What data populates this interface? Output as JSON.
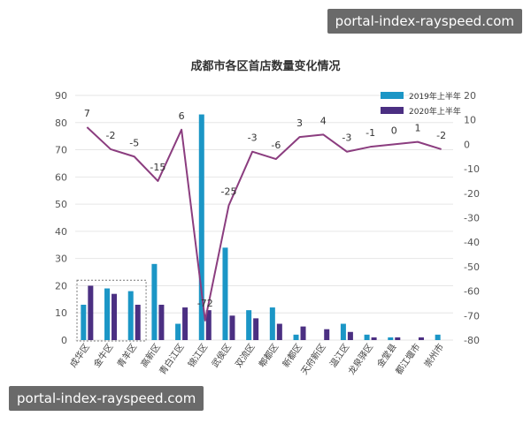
{
  "watermark_top": "portal-index-rayspeed.com",
  "watermark_bottom": "portal-index-rayspeed.com",
  "chart_data": {
    "type": "bar+line",
    "title": "成都市各区首店数量变化情况",
    "categories": [
      "成华区",
      "金牛区",
      "青羊区",
      "高新区",
      "青白江区",
      "锦江区",
      "武侯区",
      "双流区",
      "郫都区",
      "新都区",
      "天府新区",
      "温江区",
      "龙泉驿区",
      "金堂县",
      "都江堰市",
      "崇州市"
    ],
    "series": [
      {
        "name": "2019年上半年",
        "type": "bar",
        "axis": "left",
        "color": "#1b96c6",
        "values": [
          13,
          19,
          18,
          28,
          6,
          83,
          34,
          11,
          12,
          2,
          0,
          6,
          2,
          1,
          0,
          2
        ]
      },
      {
        "name": "2020年上半年",
        "type": "bar",
        "axis": "left",
        "color": "#4b2f82",
        "values": [
          20,
          17,
          13,
          13,
          12,
          11,
          9,
          8,
          6,
          5,
          4,
          3,
          1,
          1,
          1,
          0
        ]
      },
      {
        "name": "",
        "type": "line",
        "axis": "right",
        "color": "#8b3d7f",
        "values": [
          7,
          -2,
          -5,
          -15,
          6,
          -72,
          -25,
          -3,
          -6,
          3,
          4,
          -3,
          -1,
          0,
          1,
          -2
        ],
        "labels": [
          "7",
          "-2",
          "-5",
          "-15",
          "6",
          "-72",
          "-25",
          "-3",
          "-6",
          "3",
          "4",
          "-3",
          "-1",
          "0",
          "1",
          "-2"
        ]
      }
    ],
    "y_left": {
      "min": 0,
      "max": 90,
      "ticks": [
        "0",
        "10",
        "20",
        "30",
        "40",
        "50",
        "60",
        "70",
        "80",
        "90"
      ]
    },
    "y_right": {
      "min": -80,
      "max": 20,
      "ticks": [
        "-80",
        "-70",
        "-60",
        "-50",
        "-40",
        "-30",
        "-20",
        "-10",
        "0",
        "10",
        "20"
      ]
    },
    "legend_position": "top-right",
    "highlight_box": [
      "成华区",
      "金牛区",
      "青羊区"
    ],
    "grid": true
  }
}
